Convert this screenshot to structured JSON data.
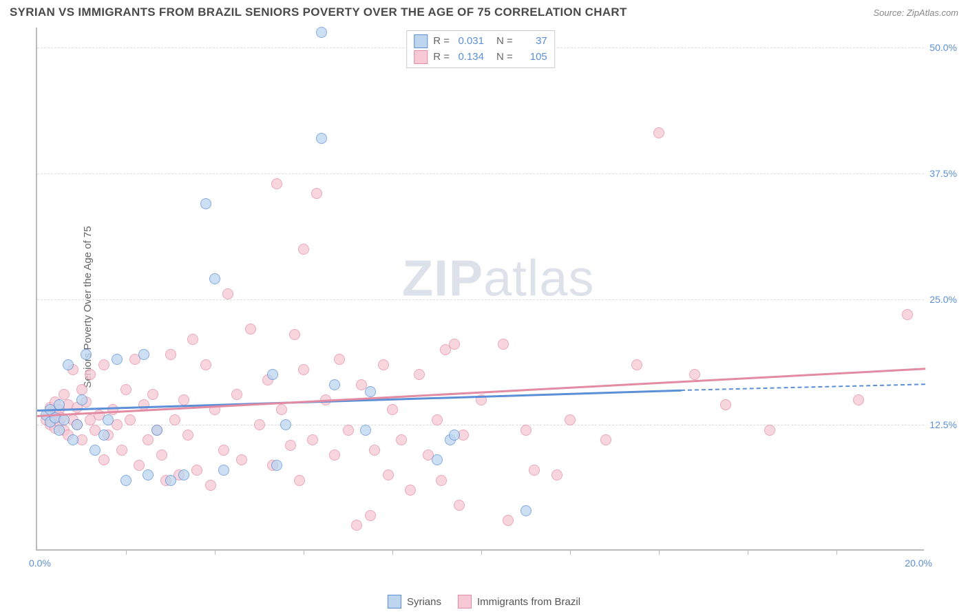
{
  "header": {
    "title": "SYRIAN VS IMMIGRANTS FROM BRAZIL SENIORS POVERTY OVER THE AGE OF 75 CORRELATION CHART",
    "source": "Source: ZipAtlas.com"
  },
  "axes": {
    "y_label": "Seniors Poverty Over the Age of 75",
    "x_min_label": "0.0%",
    "x_max_label": "20.0%",
    "xlim": [
      0,
      20
    ],
    "ylim": [
      0,
      52
    ],
    "y_ticks": [
      {
        "value": 12.5,
        "label": "12.5%"
      },
      {
        "value": 25.0,
        "label": "25.0%"
      },
      {
        "value": 37.5,
        "label": "37.5%"
      },
      {
        "value": 50.0,
        "label": "50.0%"
      }
    ],
    "x_tick_positions": [
      2,
      4,
      6,
      8,
      10,
      12,
      14,
      16,
      18
    ]
  },
  "watermark": {
    "bold": "ZIP",
    "rest": "atlas"
  },
  "series": {
    "syrians": {
      "label": "Syrians",
      "fill": "#bdd5ef",
      "border": "#5b8fd6",
      "r_value": "0.031",
      "n_value": "37",
      "trend": {
        "x1": 0,
        "y1": 14.0,
        "x2": 14.5,
        "y2": 16.0,
        "x2_dash": 20,
        "y2_dash": 16.6
      },
      "points": [
        [
          0.2,
          13.5
        ],
        [
          0.3,
          12.8
        ],
        [
          0.3,
          14.0
        ],
        [
          0.4,
          13.2
        ],
        [
          0.5,
          14.5
        ],
        [
          0.5,
          12.0
        ],
        [
          0.6,
          13.0
        ],
        [
          0.7,
          18.5
        ],
        [
          0.8,
          11.0
        ],
        [
          0.9,
          12.5
        ],
        [
          1.0,
          15.0
        ],
        [
          1.1,
          19.5
        ],
        [
          1.3,
          10.0
        ],
        [
          1.5,
          11.5
        ],
        [
          1.6,
          13.0
        ],
        [
          1.8,
          19.0
        ],
        [
          2.0,
          7.0
        ],
        [
          2.4,
          19.5
        ],
        [
          2.5,
          7.5
        ],
        [
          2.7,
          12.0
        ],
        [
          3.0,
          7.0
        ],
        [
          3.3,
          7.5
        ],
        [
          3.8,
          34.5
        ],
        [
          4.0,
          27.0
        ],
        [
          4.2,
          8.0
        ],
        [
          5.3,
          17.5
        ],
        [
          5.4,
          8.5
        ],
        [
          5.6,
          12.5
        ],
        [
          6.4,
          51.5
        ],
        [
          6.4,
          41.0
        ],
        [
          6.7,
          16.5
        ],
        [
          7.4,
          12.0
        ],
        [
          7.5,
          15.8
        ],
        [
          9.0,
          9.0
        ],
        [
          9.3,
          11.0
        ],
        [
          9.4,
          11.5
        ],
        [
          11.0,
          4.0
        ]
      ]
    },
    "brazil": {
      "label": "Immigrants from Brazil",
      "fill": "#f6c9d4",
      "border": "#e28ba3",
      "r_value": "0.134",
      "n_value": "105",
      "trend": {
        "x1": 0,
        "y1": 13.5,
        "x2": 20,
        "y2": 18.2
      },
      "points": [
        [
          0.2,
          13.0
        ],
        [
          0.25,
          13.5
        ],
        [
          0.3,
          14.2
        ],
        [
          0.3,
          12.5
        ],
        [
          0.35,
          13.8
        ],
        [
          0.4,
          14.8
        ],
        [
          0.4,
          12.2
        ],
        [
          0.45,
          13.5
        ],
        [
          0.5,
          14.0
        ],
        [
          0.5,
          12.8
        ],
        [
          0.55,
          13.2
        ],
        [
          0.6,
          15.5
        ],
        [
          0.6,
          12.0
        ],
        [
          0.7,
          14.5
        ],
        [
          0.7,
          11.5
        ],
        [
          0.8,
          13.0
        ],
        [
          0.8,
          18.0
        ],
        [
          0.9,
          14.2
        ],
        [
          0.9,
          12.5
        ],
        [
          1.0,
          16.0
        ],
        [
          1.0,
          11.0
        ],
        [
          1.1,
          14.8
        ],
        [
          1.2,
          13.0
        ],
        [
          1.2,
          17.5
        ],
        [
          1.3,
          12.0
        ],
        [
          1.4,
          13.5
        ],
        [
          1.5,
          18.5
        ],
        [
          1.5,
          9.0
        ],
        [
          1.6,
          11.5
        ],
        [
          1.7,
          14.0
        ],
        [
          1.8,
          12.5
        ],
        [
          1.9,
          10.0
        ],
        [
          2.0,
          16.0
        ],
        [
          2.1,
          13.0
        ],
        [
          2.2,
          19.0
        ],
        [
          2.3,
          8.5
        ],
        [
          2.4,
          14.5
        ],
        [
          2.5,
          11.0
        ],
        [
          2.6,
          15.5
        ],
        [
          2.7,
          12.0
        ],
        [
          2.8,
          9.5
        ],
        [
          2.9,
          7.0
        ],
        [
          3.0,
          19.5
        ],
        [
          3.1,
          13.0
        ],
        [
          3.2,
          7.5
        ],
        [
          3.3,
          15.0
        ],
        [
          3.4,
          11.5
        ],
        [
          3.5,
          21.0
        ],
        [
          3.6,
          8.0
        ],
        [
          3.8,
          18.5
        ],
        [
          3.9,
          6.5
        ],
        [
          4.0,
          14.0
        ],
        [
          4.2,
          10.0
        ],
        [
          4.3,
          25.5
        ],
        [
          4.5,
          15.5
        ],
        [
          4.6,
          9.0
        ],
        [
          4.8,
          22.0
        ],
        [
          5.0,
          12.5
        ],
        [
          5.2,
          17.0
        ],
        [
          5.3,
          8.5
        ],
        [
          5.4,
          36.5
        ],
        [
          5.5,
          14.0
        ],
        [
          5.7,
          10.5
        ],
        [
          5.8,
          21.5
        ],
        [
          5.9,
          7.0
        ],
        [
          6.0,
          18.0
        ],
        [
          6.0,
          30.0
        ],
        [
          6.2,
          11.0
        ],
        [
          6.3,
          35.5
        ],
        [
          6.5,
          15.0
        ],
        [
          6.7,
          9.5
        ],
        [
          6.8,
          19.0
        ],
        [
          7.0,
          12.0
        ],
        [
          7.2,
          2.5
        ],
        [
          7.3,
          16.5
        ],
        [
          7.5,
          3.5
        ],
        [
          7.6,
          10.0
        ],
        [
          7.8,
          18.5
        ],
        [
          7.9,
          7.5
        ],
        [
          8.0,
          14.0
        ],
        [
          8.2,
          11.0
        ],
        [
          8.4,
          6.0
        ],
        [
          8.6,
          17.5
        ],
        [
          8.8,
          9.5
        ],
        [
          9.0,
          13.0
        ],
        [
          9.1,
          7.0
        ],
        [
          9.2,
          20.0
        ],
        [
          9.4,
          20.5
        ],
        [
          9.5,
          4.5
        ],
        [
          9.6,
          11.5
        ],
        [
          10.0,
          15.0
        ],
        [
          10.5,
          20.5
        ],
        [
          10.6,
          3.0
        ],
        [
          11.0,
          12.0
        ],
        [
          11.2,
          8.0
        ],
        [
          11.7,
          7.5
        ],
        [
          12.0,
          13.0
        ],
        [
          12.8,
          11.0
        ],
        [
          13.5,
          18.5
        ],
        [
          14.0,
          41.5
        ],
        [
          14.8,
          17.5
        ],
        [
          15.5,
          14.5
        ],
        [
          16.5,
          12.0
        ],
        [
          18.5,
          15.0
        ],
        [
          19.6,
          23.5
        ]
      ]
    }
  },
  "legend_top": {
    "rows": [
      {
        "series_key": "syrians"
      },
      {
        "series_key": "brazil"
      }
    ],
    "r_label": "R =",
    "n_label": "N ="
  },
  "legend_bottom": [
    {
      "series_key": "syrians"
    },
    {
      "series_key": "brazil"
    }
  ],
  "style": {
    "background_color": "#ffffff",
    "grid_color": "#dddddd",
    "axis_color": "#bbbbbb",
    "title_color": "#4a4a4a",
    "source_color": "#888888",
    "tick_label_color": "#5b8fd6",
    "point_radius": 8,
    "point_opacity": 0.75,
    "trend_line_width": 2.5
  }
}
